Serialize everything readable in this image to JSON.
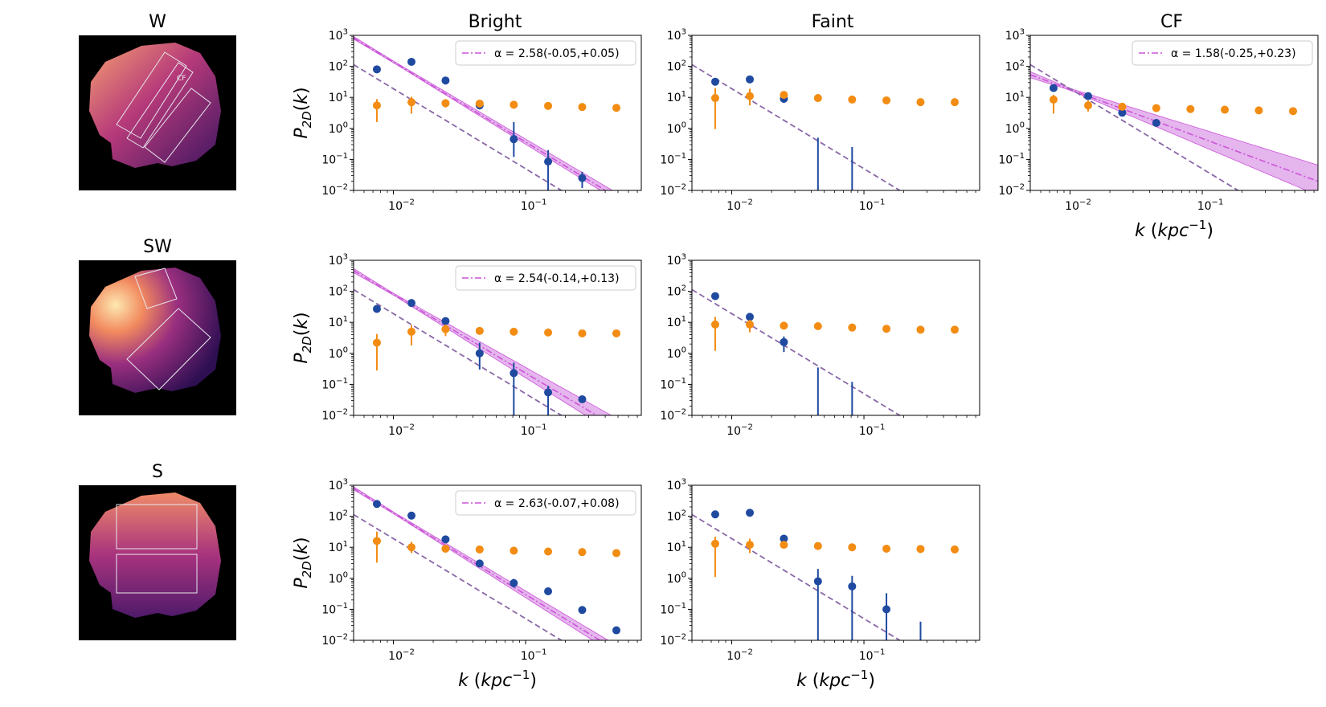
{
  "figure": {
    "columns": [
      "Bright",
      "Faint",
      "CF"
    ],
    "regions": [
      {
        "name": "W",
        "box_label": "CF"
      },
      {
        "name": "SW"
      },
      {
        "name": "S"
      }
    ],
    "xlabel": "k (kpc⁻¹)",
    "ylabel": "P_2D(k)",
    "colors": {
      "blue_points": "#1f4aa0",
      "orange_points": "#f28c12",
      "model": "#cc55d8",
      "model_band": "#dc9ce8",
      "reference": "#8a68a8"
    }
  },
  "chart_data": [
    {
      "type": "scatter",
      "region": "W",
      "column": "Bright",
      "xscale": "log",
      "yscale": "log",
      "xlim": [
        0.005,
        0.75
      ],
      "ylim": [
        0.01,
        1000
      ],
      "xticks": [
        "10^-2",
        "10^-1"
      ],
      "yticks": [
        "10^-2",
        "10^-1",
        "10^0",
        "10^1",
        "10^2",
        "10^3"
      ],
      "legend": {
        "position": "top-right",
        "label": "α = 2.58(-0.05,+0.05)"
      },
      "fit": {
        "alpha": 2.58,
        "err_lo": 0.05,
        "err_hi": 0.05,
        "amp_at_0_01": 138
      },
      "reference": {
        "slope": -2.58,
        "amp_at_0_01": 19
      },
      "series": [
        {
          "color": "blue",
          "x": [
            0.0075,
            0.0137,
            0.0248,
            0.0449,
            0.0814,
            0.148,
            0.268
          ],
          "y": [
            80,
            140,
            35,
            5.5,
            0.45,
            0.085,
            0.025
          ],
          "lo": [
            80,
            140,
            35,
            5.5,
            0.12,
            0.01,
            0.012
          ],
          "hi": [
            80,
            140,
            35,
            5.5,
            1.6,
            0.2,
            0.04
          ]
        },
        {
          "color": "orange",
          "x": [
            0.0075,
            0.0137,
            0.0248,
            0.0449,
            0.0814,
            0.148,
            0.268,
            0.486
          ],
          "y": [
            5.5,
            7,
            6.5,
            6.3,
            5.8,
            5.3,
            4.9,
            4.6
          ],
          "lo": [
            1.6,
            3.0,
            4.7,
            6.3,
            5.8,
            5.3,
            4.9,
            4.6
          ],
          "hi": [
            8.8,
            10.5,
            8.3,
            6.3,
            5.8,
            5.3,
            4.9,
            4.6
          ]
        }
      ]
    },
    {
      "type": "scatter",
      "region": "W",
      "column": "Faint",
      "xscale": "log",
      "yscale": "log",
      "xlim": [
        0.005,
        0.75
      ],
      "ylim": [
        0.01,
        1000
      ],
      "xticks": [
        "10^-2",
        "10^-1"
      ],
      "yticks": [
        "10^-2",
        "10^-1",
        "10^0",
        "10^1",
        "10^2",
        "10^3"
      ],
      "reference": {
        "slope": -2.58,
        "amp_at_0_01": 19
      },
      "series": [
        {
          "color": "blue",
          "x": [
            0.0075,
            0.0137,
            0.0248,
            0.0449,
            0.0814
          ],
          "y": [
            32,
            38,
            9,
            null,
            null
          ],
          "lo": [
            32,
            38,
            9,
            0.005,
            0.005
          ],
          "hi": [
            32,
            38,
            9,
            0.5,
            0.25
          ]
        },
        {
          "color": "orange",
          "x": [
            0.0075,
            0.0137,
            0.0248,
            0.0449,
            0.0814,
            0.148,
            0.268,
            0.486
          ],
          "y": [
            9.5,
            11,
            12,
            9.5,
            8.5,
            8,
            7,
            7
          ],
          "lo": [
            0.95,
            5.5,
            9.5,
            9.5,
            8.5,
            8,
            7,
            7
          ],
          "hi": [
            20,
            19,
            15,
            9.5,
            8.5,
            8,
            7,
            7
          ]
        }
      ]
    },
    {
      "type": "scatter",
      "region": "W",
      "column": "CF",
      "xscale": "log",
      "yscale": "log",
      "xlim": [
        0.005,
        0.75
      ],
      "ylim": [
        0.01,
        1000
      ],
      "xticks": [
        "10^-2",
        "10^-1"
      ],
      "yticks": [
        "10^-2",
        "10^-1",
        "10^0",
        "10^1",
        "10^2",
        "10^3"
      ],
      "xlabel": "k (kpc⁻¹)",
      "legend": {
        "position": "top-right",
        "label": "α = 1.58(-0.25,+0.23)"
      },
      "fit": {
        "alpha": 1.58,
        "err_lo": 0.25,
        "err_hi": 0.23,
        "amp_at_0_01": 18
      },
      "reference": {
        "slope": -2.58,
        "amp_at_0_01": 19
      },
      "series": [
        {
          "color": "blue",
          "x": [
            0.0075,
            0.0137,
            0.0248,
            0.0449
          ],
          "y": [
            20,
            11,
            3.2,
            1.5
          ],
          "lo": [
            20,
            11,
            3.2,
            1.5
          ],
          "hi": [
            20,
            11,
            3.2,
            1.5
          ]
        },
        {
          "color": "orange",
          "x": [
            0.0075,
            0.0137,
            0.0248,
            0.0449,
            0.0814,
            0.148,
            0.268,
            0.486
          ],
          "y": [
            8.5,
            5.5,
            5,
            4.5,
            4.2,
            4,
            3.8,
            3.6
          ],
          "lo": [
            3.0,
            3.5,
            5,
            4.5,
            4.2,
            4,
            3.8,
            3.6
          ],
          "hi": [
            12,
            8,
            5,
            4.5,
            4.2,
            4,
            3.8,
            3.6
          ]
        }
      ]
    },
    {
      "type": "scatter",
      "region": "SW",
      "column": "Bright",
      "xscale": "log",
      "yscale": "log",
      "xlim": [
        0.005,
        0.75
      ],
      "ylim": [
        0.01,
        1000
      ],
      "xticks": [
        "10^-2",
        "10^-1"
      ],
      "yticks": [
        "10^-2",
        "10^-1",
        "10^0",
        "10^1",
        "10^2",
        "10^3"
      ],
      "legend": {
        "position": "top-right",
        "label": "α = 2.54(-0.14,+0.13)"
      },
      "fit": {
        "alpha": 2.54,
        "err_lo": 0.14,
        "err_hi": 0.13,
        "amp_at_0_01": 80
      },
      "reference": {
        "slope": -2.58,
        "amp_at_0_01": 19
      },
      "series": [
        {
          "color": "blue",
          "x": [
            0.0075,
            0.0137,
            0.0248,
            0.0449,
            0.0814,
            0.148,
            0.268
          ],
          "y": [
            27,
            42,
            11,
            1.0,
            0.23,
            0.055,
            0.033
          ],
          "lo": [
            27,
            42,
            11,
            0.3,
            0.005,
            0.005,
            0.033
          ],
          "hi": [
            27,
            42,
            11,
            2.2,
            0.5,
            0.09,
            0.033
          ]
        },
        {
          "color": "orange",
          "x": [
            0.0075,
            0.0137,
            0.0248,
            0.0449,
            0.0814,
            0.148,
            0.268,
            0.486
          ],
          "y": [
            2.2,
            5,
            6,
            5.3,
            5,
            4.7,
            4.4,
            4.4
          ],
          "lo": [
            0.28,
            1.8,
            3.6,
            5.3,
            5,
            4.7,
            4.4,
            4.4
          ],
          "hi": [
            4.2,
            8,
            8.5,
            5.3,
            5,
            4.7,
            4.4,
            4.4
          ]
        }
      ]
    },
    {
      "type": "scatter",
      "region": "SW",
      "column": "Faint",
      "xscale": "log",
      "yscale": "log",
      "xlim": [
        0.005,
        0.75
      ],
      "ylim": [
        0.01,
        1000
      ],
      "xticks": [
        "10^-2",
        "10^-1"
      ],
      "yticks": [
        "10^-2",
        "10^-1",
        "10^0",
        "10^1",
        "10^2",
        "10^3"
      ],
      "reference": {
        "slope": -2.58,
        "amp_at_0_01": 19
      },
      "series": [
        {
          "color": "blue",
          "x": [
            0.0075,
            0.0137,
            0.0248,
            0.0449,
            0.0814
          ],
          "y": [
            70,
            15,
            2.3,
            null,
            null
          ],
          "lo": [
            70,
            15,
            1.1,
            0.005,
            0.005
          ],
          "hi": [
            70,
            15,
            3.5,
            0.35,
            0.12
          ]
        },
        {
          "color": "orange",
          "x": [
            0.0075,
            0.0137,
            0.0248,
            0.0449,
            0.0814,
            0.148,
            0.268,
            0.486
          ],
          "y": [
            8.5,
            8.5,
            7.8,
            7.5,
            6.8,
            6.2,
            5.8,
            5.8
          ],
          "lo": [
            1.2,
            4.8,
            7.8,
            7.5,
            6.8,
            6.2,
            5.8,
            5.8
          ],
          "hi": [
            15,
            12,
            7.8,
            7.5,
            6.8,
            6.2,
            5.8,
            5.8
          ]
        }
      ]
    },
    {
      "type": "scatter",
      "region": "S",
      "column": "Bright",
      "xscale": "log",
      "yscale": "log",
      "xlim": [
        0.005,
        0.75
      ],
      "ylim": [
        0.01,
        1000
      ],
      "xticks": [
        "10^-2",
        "10^-1"
      ],
      "yticks": [
        "10^-2",
        "10^-1",
        "10^0",
        "10^1",
        "10^2",
        "10^3"
      ],
      "xlabel": "k (kpc⁻¹)",
      "legend": {
        "position": "top-right",
        "label": "α = 2.63(-0.07,+0.08)"
      },
      "fit": {
        "alpha": 2.63,
        "err_lo": 0.07,
        "err_hi": 0.08,
        "amp_at_0_01": 128
      },
      "reference": {
        "slope": -2.58,
        "amp_at_0_01": 19
      },
      "series": [
        {
          "color": "blue",
          "x": [
            0.0075,
            0.0137,
            0.0248,
            0.0449,
            0.0814,
            0.148,
            0.268,
            0.486
          ],
          "y": [
            250,
            105,
            18,
            3,
            0.7,
            0.38,
            0.095,
            0.021
          ],
          "lo": [
            250,
            105,
            18,
            3,
            0.5,
            0.38,
            0.095,
            0.021
          ],
          "hi": [
            250,
            105,
            18,
            3,
            0.95,
            0.38,
            0.095,
            0.021
          ]
        },
        {
          "color": "orange",
          "x": [
            0.0075,
            0.0137,
            0.0248,
            0.0449,
            0.0814,
            0.148,
            0.268,
            0.486
          ],
          "y": [
            16,
            10,
            9,
            8.5,
            7.8,
            7.3,
            7,
            6.5
          ],
          "lo": [
            3.2,
            6.5,
            9,
            8.5,
            7.8,
            7.3,
            7,
            6.5
          ],
          "hi": [
            32,
            15,
            9,
            8.5,
            7.8,
            7.3,
            7,
            6.5
          ]
        }
      ]
    },
    {
      "type": "scatter",
      "region": "S",
      "column": "Faint",
      "xscale": "log",
      "yscale": "log",
      "xlim": [
        0.005,
        0.75
      ],
      "ylim": [
        0.01,
        1000
      ],
      "xticks": [
        "10^-2",
        "10^-1"
      ],
      "yticks": [
        "10^-2",
        "10^-1",
        "10^0",
        "10^1",
        "10^2",
        "10^3"
      ],
      "xlabel": "k (kpc⁻¹)",
      "reference": {
        "slope": -2.58,
        "amp_at_0_01": 19
      },
      "series": [
        {
          "color": "blue",
          "x": [
            0.0075,
            0.0137,
            0.0248,
            0.0449,
            0.0814,
            0.148,
            0.268
          ],
          "y": [
            115,
            130,
            19,
            0.8,
            0.55,
            0.1,
            null
          ],
          "lo": [
            115,
            130,
            19,
            0.005,
            0.005,
            0.005,
            0.005
          ],
          "hi": [
            115,
            130,
            19,
            2.0,
            1.2,
            0.33,
            0.04
          ]
        },
        {
          "color": "orange",
          "x": [
            0.0075,
            0.0137,
            0.0248,
            0.0449,
            0.0814,
            0.148,
            0.268,
            0.486
          ],
          "y": [
            13,
            12,
            12,
            11,
            10,
            9,
            8.8,
            8.5
          ],
          "lo": [
            1.1,
            6.5,
            10,
            11,
            10,
            9,
            8.8,
            8.5
          ],
          "hi": [
            22,
            19,
            15,
            11,
            10,
            9,
            8.8,
            8.5
          ]
        }
      ]
    }
  ]
}
